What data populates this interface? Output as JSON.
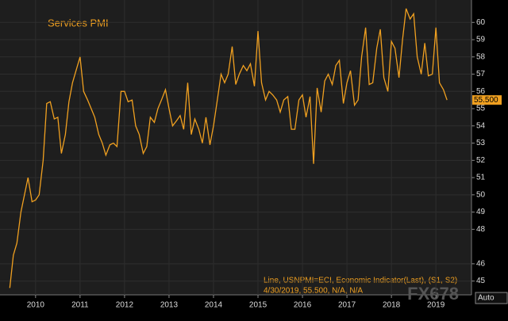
{
  "chart_data": {
    "type": "line",
    "title": "Services PMI",
    "legend_line1": "Line, USNPMI=ECI, Economic Indicator(Last), (S1, S2)",
    "legend_line2": "4/30/2019, 55.500, N/A, N/A",
    "watermark": "FX678",
    "axis_mode": "Auto",
    "xlim": [
      2009.2,
      2019.8
    ],
    "ylim": [
      44.2,
      61.3
    ],
    "xticks": [
      2010,
      2011,
      2012,
      2013,
      2014,
      2015,
      2016,
      2017,
      2018,
      2019
    ],
    "yticks": [
      45,
      46,
      48,
      49,
      50,
      51,
      52,
      53,
      54,
      55,
      56,
      57,
      58,
      59,
      60
    ],
    "grid": true,
    "series": [
      {
        "name": "USNPMI=ECI",
        "color": "#f0a020",
        "last_value_label": "55.500",
        "x": [
          2009.42,
          2009.5,
          2009.58,
          2009.67,
          2009.75,
          2009.83,
          2009.92,
          2010,
          2010.08,
          2010.17,
          2010.25,
          2010.33,
          2010.42,
          2010.5,
          2010.58,
          2010.67,
          2010.75,
          2010.83,
          2010.92,
          2011,
          2011.08,
          2011.17,
          2011.25,
          2011.33,
          2011.42,
          2011.5,
          2011.58,
          2011.67,
          2011.75,
          2011.83,
          2011.92,
          2012,
          2012.08,
          2012.17,
          2012.25,
          2012.33,
          2012.42,
          2012.5,
          2012.58,
          2012.67,
          2012.75,
          2012.83,
          2012.92,
          2013,
          2013.08,
          2013.17,
          2013.25,
          2013.33,
          2013.42,
          2013.5,
          2013.58,
          2013.67,
          2013.75,
          2013.83,
          2013.92,
          2014,
          2014.08,
          2014.17,
          2014.25,
          2014.33,
          2014.42,
          2014.5,
          2014.58,
          2014.67,
          2014.75,
          2014.83,
          2014.92,
          2015,
          2015.08,
          2015.17,
          2015.25,
          2015.33,
          2015.42,
          2015.5,
          2015.58,
          2015.67,
          2015.75,
          2015.83,
          2015.92,
          2016,
          2016.08,
          2016.17,
          2016.25,
          2016.33,
          2016.42,
          2016.5,
          2016.58,
          2016.67,
          2016.75,
          2016.83,
          2016.92,
          2017,
          2017.08,
          2017.17,
          2017.25,
          2017.33,
          2017.42,
          2017.5,
          2017.58,
          2017.67,
          2017.75,
          2017.83,
          2017.92,
          2018,
          2018.08,
          2018.17,
          2018.25,
          2018.33,
          2018.42,
          2018.5,
          2018.58,
          2018.67,
          2018.75,
          2018.83,
          2018.92,
          2019,
          2019.08,
          2019.17,
          2019.25
        ],
        "values": [
          44.6,
          46.5,
          47.2,
          49,
          50,
          51,
          49.6,
          49.7,
          50,
          52,
          55.3,
          55.4,
          54.4,
          54.5,
          52.4,
          53.5,
          55.4,
          56.5,
          57.3,
          58,
          56,
          55.5,
          55,
          54.5,
          53.5,
          53,
          52.3,
          52.9,
          53,
          52.8,
          56,
          56,
          55.4,
          55.5,
          54,
          53.5,
          52.4,
          52.8,
          54.5,
          54.2,
          55,
          55.5,
          56.1,
          55,
          54,
          54.3,
          54.6,
          53.8,
          56.5,
          53.5,
          54.4,
          53.8,
          53,
          54.5,
          52.9,
          54,
          55.4,
          57,
          56.5,
          57,
          58.6,
          56.4,
          57,
          57.5,
          57.2,
          57.6,
          56.3,
          59.5,
          56.5,
          55.5,
          56,
          55.8,
          55.5,
          54.8,
          55.5,
          55.7,
          53.8,
          53.8,
          55.5,
          55.8,
          54.5,
          55.7,
          51.8,
          56.2,
          54.8,
          56.6,
          57,
          56.4,
          57.5,
          57.8,
          55.3,
          56.5,
          57.2,
          55.2,
          55.5,
          58,
          59.7,
          56.4,
          56.5,
          58.5,
          59.6,
          56.8,
          56,
          58.9,
          58.5,
          56.8,
          59,
          60.8,
          60.2,
          60.5,
          58,
          57,
          58.8,
          56.9,
          57,
          59.7,
          56.5,
          56.1,
          55.5
        ]
      }
    ]
  }
}
